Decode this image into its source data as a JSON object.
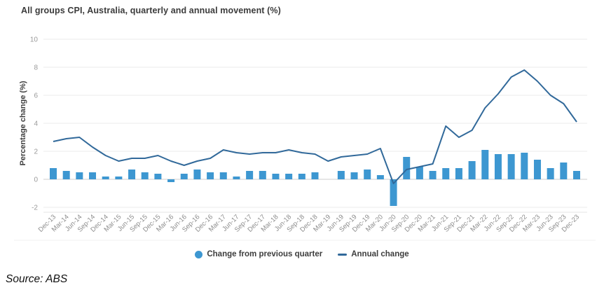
{
  "source_note": "Source: ABS",
  "colors": {
    "bar": "#3d97d1",
    "line": "#31699a",
    "grid": "#ebebeb",
    "zero_line": "#cccccc",
    "axis_line": "#e4e4e4",
    "title_text": "#3b3b3b"
  },
  "chart_data": {
    "type": "bar",
    "title": "All groups CPI, Australia, quarterly and annual movement (%)",
    "xlabel": "",
    "ylabel": "Percentage change (%)",
    "ylim": [
      -2,
      10
    ],
    "yticks": [
      10,
      8,
      6,
      4,
      2,
      0,
      -2
    ],
    "grid": true,
    "legend_position": "bottom",
    "categories": [
      "Dec-13",
      "Mar-14",
      "Jun-14",
      "Sep-14",
      "Dec-14",
      "Mar-15",
      "Jun-15",
      "Sep-15",
      "Dec-15",
      "Mar-16",
      "Jun-16",
      "Sep-16",
      "Dec-16",
      "Mar-17",
      "Jun-17",
      "Sep-17",
      "Dec-17",
      "Mar-18",
      "Jun-18",
      "Sep-18",
      "Dec-18",
      "Mar-19",
      "Jun-19",
      "Sep-19",
      "Dec-19",
      "Mar-20",
      "Jun-20",
      "Sep-20",
      "Dec-20",
      "Mar-21",
      "Jun-21",
      "Sep-21",
      "Dec-21",
      "Mar-22",
      "Jun-22",
      "Sep-22",
      "Dec-22",
      "Mar-23",
      "Jun-23",
      "Sep-23",
      "Dec-23"
    ],
    "series": [
      {
        "name": "Change from previous quarter",
        "type": "bar",
        "values": [
          0.8,
          0.6,
          0.5,
          0.5,
          0.2,
          0.2,
          0.7,
          0.5,
          0.4,
          -0.2,
          0.4,
          0.7,
          0.5,
          0.5,
          0.2,
          0.6,
          0.6,
          0.4,
          0.4,
          0.4,
          0.5,
          0.0,
          0.6,
          0.5,
          0.7,
          0.3,
          -1.9,
          1.6,
          0.9,
          0.6,
          0.8,
          0.8,
          1.3,
          2.1,
          1.8,
          1.8,
          1.9,
          1.4,
          0.8,
          1.2,
          0.6
        ]
      },
      {
        "name": "Annual change",
        "type": "line",
        "values": [
          2.7,
          2.9,
          3.0,
          2.3,
          1.7,
          1.3,
          1.5,
          1.5,
          1.7,
          1.3,
          1.0,
          1.3,
          1.5,
          2.1,
          1.9,
          1.8,
          1.9,
          1.9,
          2.1,
          1.9,
          1.8,
          1.3,
          1.6,
          1.7,
          1.8,
          2.2,
          -0.3,
          0.7,
          0.9,
          1.1,
          3.8,
          3.0,
          3.5,
          5.1,
          6.1,
          7.3,
          7.8,
          7.0,
          6.0,
          5.4,
          4.1
        ]
      }
    ]
  }
}
